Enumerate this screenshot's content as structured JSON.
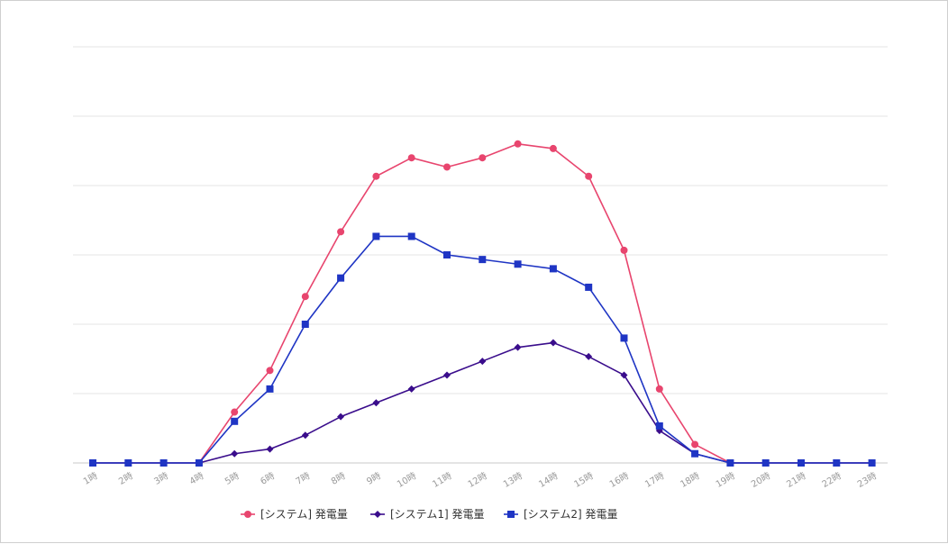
{
  "chart_data": {
    "type": "line",
    "title": "",
    "xlabel": "",
    "ylabel": "",
    "categories": [
      "1時",
      "2時",
      "3時",
      "4時",
      "5時",
      "6時",
      "7時",
      "8時",
      "9時",
      "10時",
      "11時",
      "12時",
      "13時",
      "14時",
      "15時",
      "16時",
      "17時",
      "18時",
      "19時",
      "20時",
      "21時",
      "22時",
      "23時"
    ],
    "ylim": [
      0,
      90
    ],
    "ygrid_step": 15,
    "grid": true,
    "legend_position": "bottom",
    "series": [
      {
        "name": "[システム] 発電量",
        "color": "#e8456e",
        "marker": "circle",
        "values": [
          0,
          0,
          0,
          0,
          11,
          20,
          36,
          50,
          62,
          66,
          64,
          66,
          69,
          68,
          62,
          46,
          16,
          4,
          0,
          0,
          0,
          0,
          0
        ]
      },
      {
        "name": "[システム1] 発電量",
        "color": "#3a0d8c",
        "marker": "diamond",
        "values": [
          0,
          0,
          0,
          0,
          2,
          3,
          6,
          10,
          13,
          16,
          19,
          22,
          25,
          26,
          23,
          19,
          7,
          2,
          0,
          0,
          0,
          0,
          0
        ]
      },
      {
        "name": "[システム2] 発電量",
        "color": "#1f35c4",
        "marker": "square",
        "values": [
          0,
          0,
          0,
          0,
          9,
          16,
          30,
          40,
          49,
          49,
          45,
          44,
          43,
          42,
          38,
          27,
          8,
          2,
          0,
          0,
          0,
          0,
          0
        ]
      }
    ]
  }
}
